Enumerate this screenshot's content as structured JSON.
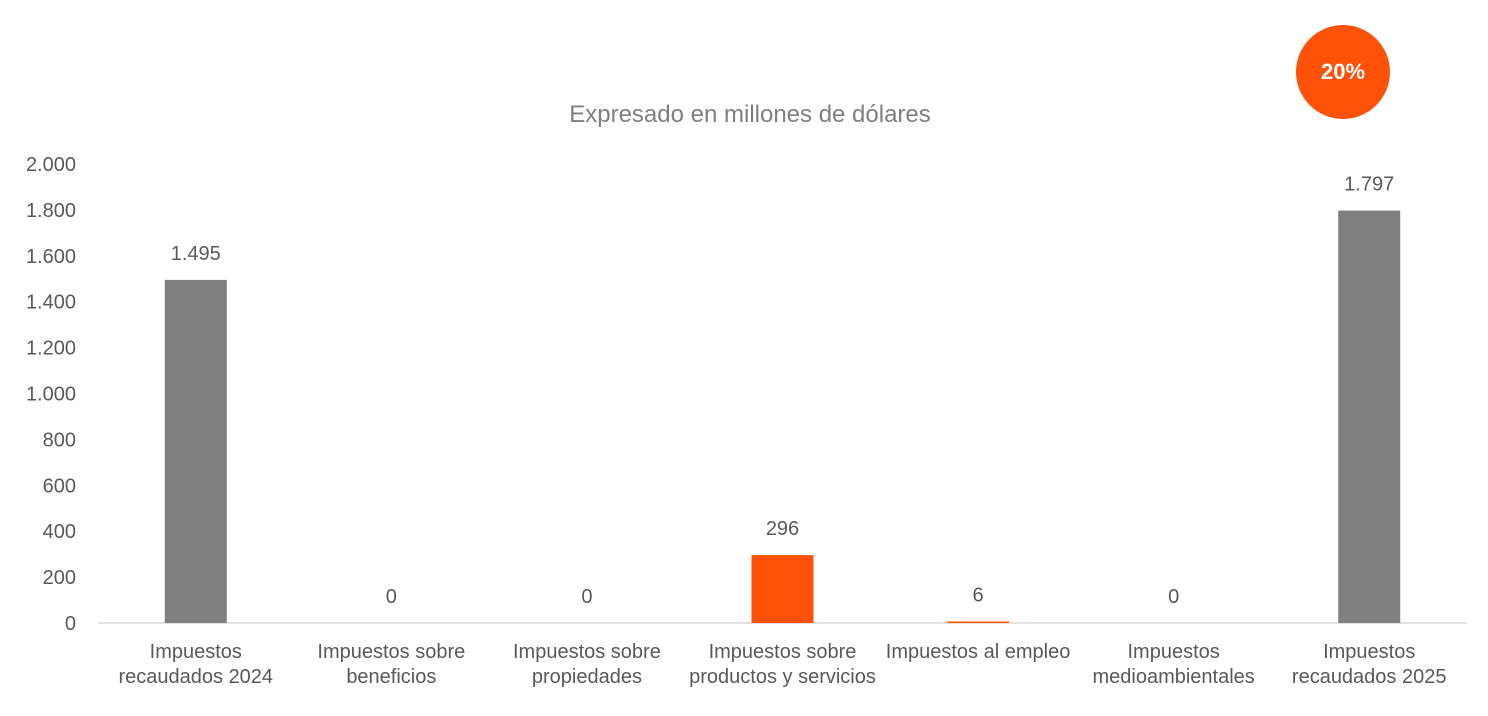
{
  "badge": {
    "text": "20%",
    "color": "#ff5108"
  },
  "chart_data": {
    "type": "bar",
    "title": "Expresado en millones de dólares",
    "categories": [
      "Impuestos recaudados 2024",
      "Impuestos sobre beneficios",
      "Impuestos sobre propiedades",
      "Impuestos sobre productos y servicios",
      "Impuestos al empleo",
      "Impuestos medioambientales",
      "Impuestos recaudados 2025"
    ],
    "values": [
      1495,
      0,
      0,
      296,
      6,
      0,
      1797
    ],
    "data_labels": [
      "1.495",
      "0",
      "0",
      "296",
      "6",
      "0",
      "1.797"
    ],
    "bar_colors": [
      "#7f7f7f",
      "#ff5108",
      "#ff5108",
      "#ff5108",
      "#ff5108",
      "#ff5108",
      "#7f7f7f"
    ],
    "ylim": [
      0,
      2000
    ],
    "yticks": [
      0,
      200,
      400,
      600,
      800,
      1000,
      1200,
      1400,
      1600,
      1800,
      2000
    ],
    "ytick_labels": [
      "0",
      "200",
      "400",
      "600",
      "800",
      "1.000",
      "1.200",
      "1.400",
      "1.600",
      "1.800",
      "2.000"
    ],
    "grid": false,
    "legend": "none"
  }
}
